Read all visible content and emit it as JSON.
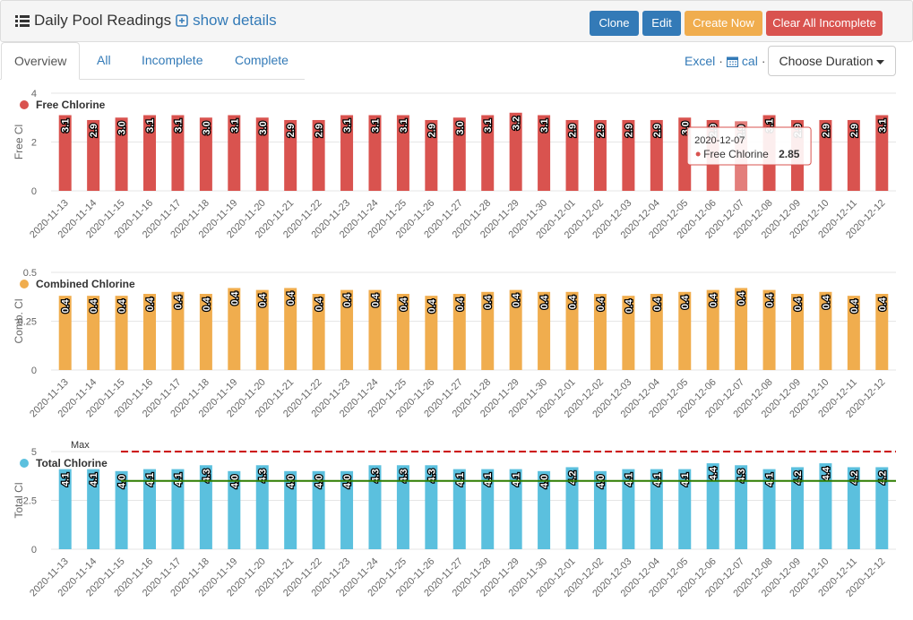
{
  "header": {
    "title": "Daily Pool Readings",
    "details_link": "show details",
    "buttons": [
      "Clone",
      "Edit",
      "Create Now",
      "Clear All Incomplete"
    ]
  },
  "tabs": [
    "Overview",
    "All",
    "Incomplete",
    "Complete"
  ],
  "toolbar": {
    "excel": "Excel",
    "cal": "cal",
    "duration": "Choose Duration"
  },
  "chart_data": [
    {
      "type": "bar",
      "y_label": "Free Cl",
      "categories": [
        "2020-11-13",
        "2020-11-14",
        "2020-11-15",
        "2020-11-16",
        "2020-11-17",
        "2020-11-18",
        "2020-11-19",
        "2020-11-20",
        "2020-11-21",
        "2020-11-22",
        "2020-11-23",
        "2020-11-24",
        "2020-11-25",
        "2020-11-26",
        "2020-11-27",
        "2020-11-28",
        "2020-11-29",
        "2020-11-30",
        "2020-12-01",
        "2020-12-02",
        "2020-12-03",
        "2020-12-04",
        "2020-12-05",
        "2020-12-06",
        "2020-12-07",
        "2020-12-08",
        "2020-12-09",
        "2020-12-10",
        "2020-12-11",
        "2020-12-12"
      ],
      "series": [
        {
          "name": "Free Chlorine",
          "color": "#d9534f",
          "values": [
            3.1,
            2.9,
            3.0,
            3.1,
            3.1,
            3.0,
            3.1,
            3.0,
            2.9,
            2.9,
            3.1,
            3.1,
            3.1,
            2.9,
            3.0,
            3.1,
            3.2,
            3.1,
            2.9,
            2.9,
            2.9,
            2.9,
            3.0,
            2.9,
            2.85,
            3.1,
            2.9,
            2.9,
            2.9,
            3.1
          ],
          "value_labels": [
            "3.1",
            "2.9",
            "3.0",
            "3.1",
            "3.1",
            "3.0",
            "3.1",
            "3.0",
            "2.9",
            "2.9",
            "3.1",
            "3.1",
            "3.1",
            "2.9",
            "3.0",
            "3.1",
            "3.2",
            "3.1",
            "2.9",
            "2.9",
            "2.9",
            "2.9",
            "3.0",
            "2.9",
            "2.9",
            "3.1",
            "2.9",
            "2.9",
            "2.9",
            "3.1"
          ]
        }
      ],
      "ylim": [
        0,
        4
      ],
      "yticks": [
        0,
        2,
        4
      ],
      "grid": true
    },
    {
      "type": "bar",
      "y_label": "Comb. Cl",
      "categories": [
        "2020-11-13",
        "2020-11-14",
        "2020-11-15",
        "2020-11-16",
        "2020-11-17",
        "2020-11-18",
        "2020-11-19",
        "2020-11-20",
        "2020-11-21",
        "2020-11-22",
        "2020-11-23",
        "2020-11-24",
        "2020-11-25",
        "2020-11-26",
        "2020-11-27",
        "2020-11-28",
        "2020-11-29",
        "2020-11-30",
        "2020-12-01",
        "2020-12-02",
        "2020-12-03",
        "2020-12-04",
        "2020-12-05",
        "2020-12-06",
        "2020-12-07",
        "2020-12-08",
        "2020-12-09",
        "2020-12-10",
        "2020-12-11",
        "2020-12-12"
      ],
      "series": [
        {
          "name": "Combined Chlorine",
          "color": "#f0ad4e",
          "values": [
            0.38,
            0.38,
            0.38,
            0.39,
            0.4,
            0.39,
            0.42,
            0.41,
            0.42,
            0.39,
            0.41,
            0.41,
            0.39,
            0.38,
            0.39,
            0.4,
            0.41,
            0.4,
            0.4,
            0.39,
            0.38,
            0.39,
            0.4,
            0.41,
            0.42,
            0.41,
            0.39,
            0.4,
            0.38,
            0.39
          ],
          "value_labels": [
            "0.4",
            "0.4",
            "0.4",
            "0.4",
            "0.4",
            "0.4",
            "0.4",
            "0.4",
            "0.4",
            "0.4",
            "0.4",
            "0.4",
            "0.4",
            "0.4",
            "0.4",
            "0.4",
            "0.4",
            "0.4",
            "0.4",
            "0.4",
            "0.4",
            "0.4",
            "0.4",
            "0.4",
            "0.4",
            "0.4",
            "0.4",
            "0.4",
            "0.4",
            "0.4"
          ]
        }
      ],
      "ylim": [
        0,
        0.5
      ],
      "yticks": [
        0,
        0.25,
        0.5
      ],
      "grid": true
    },
    {
      "type": "bar",
      "y_label": "Total Cl",
      "categories": [
        "2020-11-13",
        "2020-11-14",
        "2020-11-15",
        "2020-11-16",
        "2020-11-17",
        "2020-11-18",
        "2020-11-19",
        "2020-11-20",
        "2020-11-21",
        "2020-11-22",
        "2020-11-23",
        "2020-11-24",
        "2020-11-25",
        "2020-11-26",
        "2020-11-27",
        "2020-11-28",
        "2020-11-29",
        "2020-11-30",
        "2020-12-01",
        "2020-12-02",
        "2020-12-03",
        "2020-12-04",
        "2020-12-05",
        "2020-12-06",
        "2020-12-07",
        "2020-12-08",
        "2020-12-09",
        "2020-12-10",
        "2020-12-11",
        "2020-12-12"
      ],
      "series": [
        {
          "name": "Total Chlorine",
          "color": "#5bc0de",
          "values": [
            4.1,
            4.1,
            4.0,
            4.1,
            4.1,
            4.3,
            4.0,
            4.3,
            4.0,
            4.0,
            4.0,
            4.3,
            4.3,
            4.3,
            4.1,
            4.1,
            4.1,
            4.0,
            4.2,
            4.0,
            4.1,
            4.1,
            4.1,
            4.4,
            4.3,
            4.1,
            4.2,
            4.4,
            4.2,
            4.2
          ],
          "value_labels": [
            "4.1",
            "4.1",
            "4.0",
            "4.1",
            "4.1",
            "4.3",
            "4.0",
            "4.3",
            "4.0",
            "4.0",
            "4.0",
            "4.3",
            "4.3",
            "4.3",
            "4.1",
            "4.1",
            "4.1",
            "4.0",
            "4.2",
            "4.0",
            "4.1",
            "4.1",
            "4.1",
            "4.4",
            "4.3",
            "4.1",
            "4.2",
            "4.4",
            "4.2",
            "4.2"
          ]
        }
      ],
      "ylim": [
        0,
        5
      ],
      "yticks": [
        0,
        2.5,
        5
      ],
      "grid": true,
      "reference_lines": [
        {
          "value": 5,
          "label": "Max",
          "color": "#cc0000"
        },
        {
          "value": 3.5,
          "color": "#2e7d00"
        }
      ]
    }
  ]
}
